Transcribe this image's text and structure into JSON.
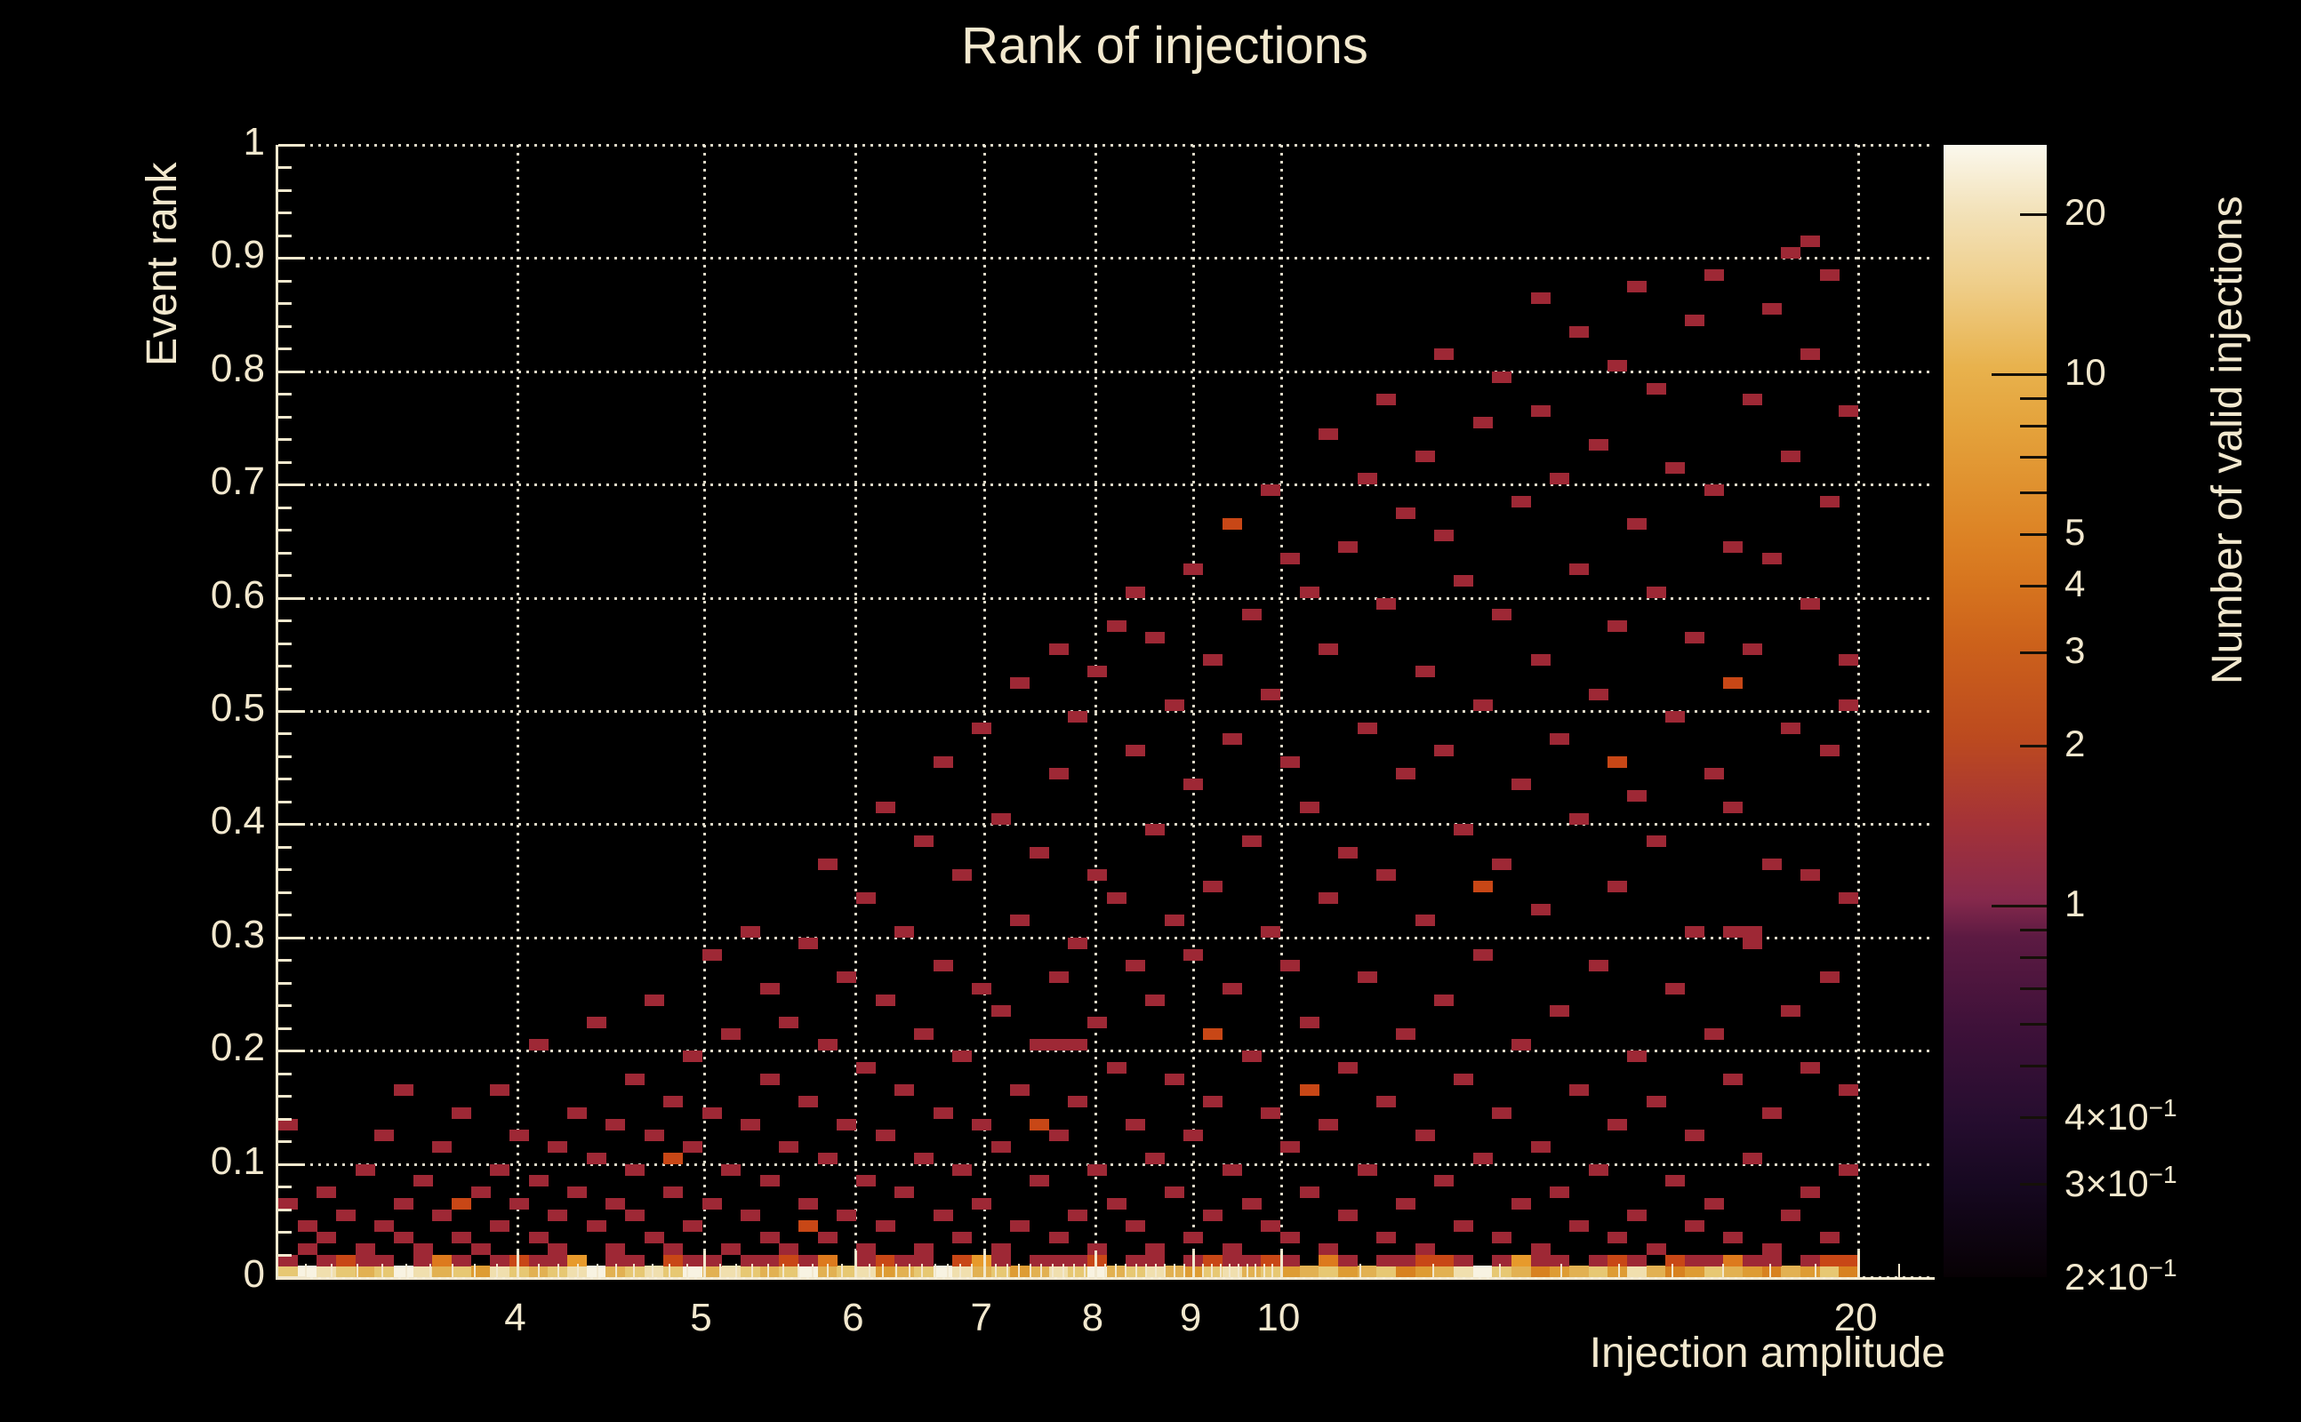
{
  "title": "Rank of injections",
  "x_axis": {
    "title": "Injection amplitude",
    "scale": "log",
    "min": 3,
    "max": 21.9,
    "major_ticks": [
      4,
      5,
      6,
      7,
      8,
      9,
      10,
      20
    ],
    "tick_labels": [
      "4",
      "5",
      "6",
      "7",
      "8",
      "9",
      "10",
      "20"
    ]
  },
  "y_axis": {
    "title": "Event rank",
    "scale": "linear",
    "min": 0,
    "max": 1,
    "major_ticks": [
      1,
      0.9,
      0.8,
      0.7,
      0.6,
      0.5,
      0.4,
      0.3,
      0.2,
      0.1,
      0
    ],
    "tick_labels": [
      "1",
      "0.9",
      "0.8",
      "0.7",
      "0.6",
      "0.5",
      "0.4",
      "0.3",
      "0.2",
      "0.1",
      "0"
    ]
  },
  "colorbar": {
    "title": "Number of valid injections",
    "scale": "log",
    "min": 0.2,
    "max": 27,
    "gradient_stops": [
      {
        "f": 0.0,
        "c": "#070104"
      },
      {
        "f": 0.08,
        "c": "#160820"
      },
      {
        "f": 0.14,
        "c": "#260D2F"
      },
      {
        "f": 0.22,
        "c": "#3E1139"
      },
      {
        "f": 0.3,
        "c": "#5C1A42"
      },
      {
        "f": 0.334,
        "c": "#86294C"
      },
      {
        "f": 0.4,
        "c": "#A43238"
      },
      {
        "f": 0.476,
        "c": "#BC4A1F"
      },
      {
        "f": 0.558,
        "c": "#CC611B"
      },
      {
        "f": 0.617,
        "c": "#D7761F"
      },
      {
        "f": 0.662,
        "c": "#DD8526"
      },
      {
        "f": 0.75,
        "c": "#E4A23B"
      },
      {
        "f": 0.804,
        "c": "#E8B24D"
      },
      {
        "f": 0.88,
        "c": "#EFCF8C"
      },
      {
        "f": 0.945,
        "c": "#F3E3BC"
      },
      {
        "f": 1.0,
        "c": "#FBF8ED"
      }
    ],
    "ticks": [
      {
        "v": 20,
        "len": 30
      },
      {
        "v": 10,
        "len": 62
      },
      {
        "v": 9,
        "len": 30
      },
      {
        "v": 8,
        "len": 30
      },
      {
        "v": 7,
        "len": 30
      },
      {
        "v": 6,
        "len": 30
      },
      {
        "v": 5,
        "len": 30
      },
      {
        "v": 4,
        "len": 30
      },
      {
        "v": 3,
        "len": 30
      },
      {
        "v": 2,
        "len": 30
      },
      {
        "v": 1,
        "len": 62
      },
      {
        "v": 0.9,
        "len": 30
      },
      {
        "v": 0.8,
        "len": 30
      },
      {
        "v": 0.7,
        "len": 30
      },
      {
        "v": 0.6,
        "len": 30
      },
      {
        "v": 0.5,
        "len": 30
      },
      {
        "v": 0.4,
        "len": 30
      },
      {
        "v": 0.3,
        "len": 30
      }
    ],
    "labels": [
      {
        "v": 20,
        "base": "20"
      },
      {
        "v": 10,
        "base": "10"
      },
      {
        "v": 5,
        "base": "5"
      },
      {
        "v": 4,
        "base": "4"
      },
      {
        "v": 3,
        "base": "3"
      },
      {
        "v": 2,
        "base": "2"
      },
      {
        "v": 1,
        "base": "1"
      },
      {
        "v": 0.4,
        "base": "4×10",
        "exp": "−1"
      },
      {
        "v": 0.3,
        "base": "3×10",
        "exp": "−1"
      },
      {
        "v": 0.2,
        "base": "2×10",
        "exp": "−1"
      }
    ]
  },
  "chart_data": {
    "type": "heatmap",
    "x_range_amplitude": [
      3,
      20
    ],
    "y_range_rank": [
      0,
      1
    ],
    "nx_bins": 82,
    "ny_bins": 100,
    "count_colors": {
      "1": "#9E2835",
      "2": "#C84716",
      "3": "#DD7A1D",
      "4": "#E79A2B"
    },
    "stripe_palette": {
      "W": "#F8F3E2",
      "C": "#F0DFAE",
      "T": "#E7C873",
      "A": "#E2B152",
      "O": "#DE9C33",
      "D": "#D8821F"
    },
    "row0_stripe": "TWCTATWCATOCTATCWATCTWACTATWATCOATWCATOACTWATCAOTCATOATOATDOACWTADOATOCADOTAODAOTD",
    "row1_band": "r.rorr.rbr.rorra.rr.orr.rrorb.rorr.oar.rrro.rr.rorror.br.rroor.rarr.ror.orrbrr.roo",
    "cells": [
      [
        0,
        6
      ],
      [
        0,
        13
      ],
      [
        1,
        2
      ],
      [
        1,
        4
      ],
      [
        2,
        3
      ],
      [
        2,
        7
      ],
      [
        3,
        5
      ],
      [
        4,
        2
      ],
      [
        4,
        9
      ],
      [
        5,
        4
      ],
      [
        5,
        12
      ],
      [
        6,
        3
      ],
      [
        6,
        6
      ],
      [
        6,
        16
      ],
      [
        7,
        2
      ],
      [
        7,
        8
      ],
      [
        8,
        5
      ],
      [
        8,
        11
      ],
      [
        9,
        3
      ],
      [
        9,
        6,
        2
      ],
      [
        9,
        14
      ],
      [
        10,
        2
      ],
      [
        10,
        7
      ],
      [
        11,
        4
      ],
      [
        11,
        9
      ],
      [
        11,
        16
      ],
      [
        12,
        6
      ],
      [
        12,
        12
      ],
      [
        13,
        3
      ],
      [
        13,
        8
      ],
      [
        13,
        20
      ],
      [
        14,
        2
      ],
      [
        14,
        5
      ],
      [
        14,
        11
      ],
      [
        15,
        7
      ],
      [
        15,
        14
      ],
      [
        16,
        4
      ],
      [
        16,
        10
      ],
      [
        16,
        22
      ],
      [
        17,
        2
      ],
      [
        17,
        6
      ],
      [
        17,
        13
      ],
      [
        18,
        5
      ],
      [
        18,
        9
      ],
      [
        18,
        17
      ],
      [
        19,
        3
      ],
      [
        19,
        12
      ],
      [
        19,
        24
      ],
      [
        20,
        2
      ],
      [
        20,
        7
      ],
      [
        20,
        10,
        2
      ],
      [
        20,
        15
      ],
      [
        21,
        4
      ],
      [
        21,
        11
      ],
      [
        21,
        19
      ],
      [
        22,
        6
      ],
      [
        22,
        14
      ],
      [
        22,
        28
      ],
      [
        23,
        2
      ],
      [
        23,
        9
      ],
      [
        23,
        21
      ],
      [
        24,
        5
      ],
      [
        24,
        13
      ],
      [
        24,
        30
      ],
      [
        25,
        3
      ],
      [
        25,
        8
      ],
      [
        25,
        17
      ],
      [
        25,
        25
      ],
      [
        26,
        2
      ],
      [
        26,
        11
      ],
      [
        26,
        22
      ],
      [
        27,
        4,
        2
      ],
      [
        27,
        6
      ],
      [
        27,
        15
      ],
      [
        27,
        29
      ],
      [
        28,
        3
      ],
      [
        28,
        10
      ],
      [
        28,
        20
      ],
      [
        28,
        36
      ],
      [
        29,
        5
      ],
      [
        29,
        13
      ],
      [
        29,
        26
      ],
      [
        30,
        2
      ],
      [
        30,
        8
      ],
      [
        30,
        18
      ],
      [
        30,
        33
      ],
      [
        31,
        4
      ],
      [
        31,
        12
      ],
      [
        31,
        24
      ],
      [
        31,
        41
      ],
      [
        32,
        7
      ],
      [
        32,
        16
      ],
      [
        32,
        30
      ],
      [
        33,
        2
      ],
      [
        33,
        10
      ],
      [
        33,
        21
      ],
      [
        33,
        38
      ],
      [
        34,
        5
      ],
      [
        34,
        14
      ],
      [
        34,
        27
      ],
      [
        34,
        45
      ],
      [
        35,
        3
      ],
      [
        35,
        9
      ],
      [
        35,
        19
      ],
      [
        35,
        35
      ],
      [
        36,
        6
      ],
      [
        36,
        13
      ],
      [
        36,
        25
      ],
      [
        36,
        48
      ],
      [
        37,
        2
      ],
      [
        37,
        11
      ],
      [
        37,
        23
      ],
      [
        37,
        40
      ],
      [
        38,
        4
      ],
      [
        38,
        16
      ],
      [
        38,
        31
      ],
      [
        38,
        52
      ],
      [
        39,
        8
      ],
      [
        39,
        13,
        2
      ],
      [
        39,
        20
      ],
      [
        39,
        37
      ],
      [
        40,
        3
      ],
      [
        40,
        12
      ],
      [
        40,
        20
      ],
      [
        40,
        26
      ],
      [
        40,
        44
      ],
      [
        40,
        55
      ],
      [
        41,
        5
      ],
      [
        41,
        15
      ],
      [
        41,
        20
      ],
      [
        41,
        29
      ],
      [
        41,
        49
      ],
      [
        42,
        2
      ],
      [
        42,
        9
      ],
      [
        42,
        22
      ],
      [
        42,
        35
      ],
      [
        42,
        53
      ],
      [
        43,
        6
      ],
      [
        43,
        18
      ],
      [
        43,
        33
      ],
      [
        43,
        57
      ],
      [
        44,
        4
      ],
      [
        44,
        13
      ],
      [
        44,
        27
      ],
      [
        44,
        46
      ],
      [
        44,
        60
      ],
      [
        45,
        2
      ],
      [
        45,
        10
      ],
      [
        45,
        24
      ],
      [
        45,
        39
      ],
      [
        45,
        56
      ],
      [
        46,
        7
      ],
      [
        46,
        17
      ],
      [
        46,
        31
      ],
      [
        46,
        50
      ],
      [
        47,
        3
      ],
      [
        47,
        12
      ],
      [
        47,
        28
      ],
      [
        47,
        43
      ],
      [
        47,
        62
      ],
      [
        48,
        5
      ],
      [
        48,
        15
      ],
      [
        48,
        21,
        2
      ],
      [
        48,
        34
      ],
      [
        48,
        54
      ],
      [
        49,
        2
      ],
      [
        49,
        9
      ],
      [
        49,
        25
      ],
      [
        49,
        47
      ],
      [
        49,
        66,
        2
      ],
      [
        50,
        6
      ],
      [
        50,
        19
      ],
      [
        50,
        38
      ],
      [
        50,
        58
      ],
      [
        51,
        4
      ],
      [
        51,
        14
      ],
      [
        51,
        30
      ],
      [
        51,
        51
      ],
      [
        51,
        69
      ],
      [
        52,
        3
      ],
      [
        52,
        11
      ],
      [
        52,
        27
      ],
      [
        52,
        45
      ],
      [
        52,
        63
      ],
      [
        53,
        7
      ],
      [
        53,
        16,
        2
      ],
      [
        53,
        22
      ],
      [
        53,
        41
      ],
      [
        53,
        60
      ],
      [
        54,
        2
      ],
      [
        54,
        13
      ],
      [
        54,
        33
      ],
      [
        54,
        55
      ],
      [
        54,
        74
      ],
      [
        55,
        5
      ],
      [
        55,
        18
      ],
      [
        55,
        37
      ],
      [
        55,
        64
      ],
      [
        56,
        9
      ],
      [
        56,
        26
      ],
      [
        56,
        48
      ],
      [
        56,
        70
      ],
      [
        57,
        3
      ],
      [
        57,
        15
      ],
      [
        57,
        35
      ],
      [
        57,
        59
      ],
      [
        57,
        77
      ],
      [
        58,
        6
      ],
      [
        58,
        21
      ],
      [
        58,
        44
      ],
      [
        58,
        67
      ],
      [
        59,
        2
      ],
      [
        59,
        12
      ],
      [
        59,
        31
      ],
      [
        59,
        53
      ],
      [
        59,
        72
      ],
      [
        60,
        8
      ],
      [
        60,
        24
      ],
      [
        60,
        46
      ],
      [
        60,
        65
      ],
      [
        60,
        81
      ],
      [
        61,
        4
      ],
      [
        61,
        17
      ],
      [
        61,
        39
      ],
      [
        61,
        61
      ],
      [
        62,
        10
      ],
      [
        62,
        28
      ],
      [
        62,
        34,
        2
      ],
      [
        62,
        50
      ],
      [
        62,
        75
      ],
      [
        63,
        3
      ],
      [
        63,
        14
      ],
      [
        63,
        36
      ],
      [
        63,
        58
      ],
      [
        63,
        79
      ],
      [
        64,
        6
      ],
      [
        64,
        20
      ],
      [
        64,
        43
      ],
      [
        64,
        68
      ],
      [
        65,
        2
      ],
      [
        65,
        11
      ],
      [
        65,
        32
      ],
      [
        65,
        54
      ],
      [
        65,
        76
      ],
      [
        65,
        86
      ],
      [
        66,
        7
      ],
      [
        66,
        23
      ],
      [
        66,
        47
      ],
      [
        66,
        70
      ],
      [
        67,
        4
      ],
      [
        67,
        16
      ],
      [
        67,
        40
      ],
      [
        67,
        62
      ],
      [
        67,
        83
      ],
      [
        68,
        9
      ],
      [
        68,
        27
      ],
      [
        68,
        51
      ],
      [
        68,
        73
      ],
      [
        69,
        3
      ],
      [
        69,
        13
      ],
      [
        69,
        34
      ],
      [
        69,
        45,
        2
      ],
      [
        69,
        57
      ],
      [
        69,
        80
      ],
      [
        70,
        5
      ],
      [
        70,
        19
      ],
      [
        70,
        42
      ],
      [
        70,
        66
      ],
      [
        70,
        87
      ],
      [
        71,
        2
      ],
      [
        71,
        15
      ],
      [
        71,
        38
      ],
      [
        71,
        60
      ],
      [
        71,
        78
      ],
      [
        72,
        8
      ],
      [
        72,
        25
      ],
      [
        72,
        49
      ],
      [
        72,
        71
      ],
      [
        73,
        4
      ],
      [
        73,
        12
      ],
      [
        73,
        30
      ],
      [
        73,
        56
      ],
      [
        73,
        84
      ],
      [
        74,
        6
      ],
      [
        74,
        21
      ],
      [
        74,
        44
      ],
      [
        74,
        69
      ],
      [
        74,
        88
      ],
      [
        75,
        3
      ],
      [
        75,
        17
      ],
      [
        75,
        30
      ],
      [
        75,
        41
      ],
      [
        75,
        52,
        2
      ],
      [
        75,
        64
      ],
      [
        76,
        10
      ],
      [
        76,
        29
      ],
      [
        76,
        30
      ],
      [
        76,
        55
      ],
      [
        76,
        77
      ],
      [
        77,
        2
      ],
      [
        77,
        14
      ],
      [
        77,
        36
      ],
      [
        77,
        63
      ],
      [
        77,
        85
      ],
      [
        78,
        5
      ],
      [
        78,
        23
      ],
      [
        78,
        48
      ],
      [
        78,
        72
      ],
      [
        78,
        90
      ],
      [
        79,
        7
      ],
      [
        79,
        18
      ],
      [
        79,
        35
      ],
      [
        79,
        59
      ],
      [
        79,
        81
      ],
      [
        79,
        91
      ],
      [
        80,
        3
      ],
      [
        80,
        26
      ],
      [
        80,
        46
      ],
      [
        80,
        68
      ],
      [
        80,
        88
      ],
      [
        81,
        9
      ],
      [
        81,
        16
      ],
      [
        81,
        33
      ],
      [
        81,
        50
      ],
      [
        81,
        54
      ],
      [
        81,
        76
      ]
    ]
  }
}
